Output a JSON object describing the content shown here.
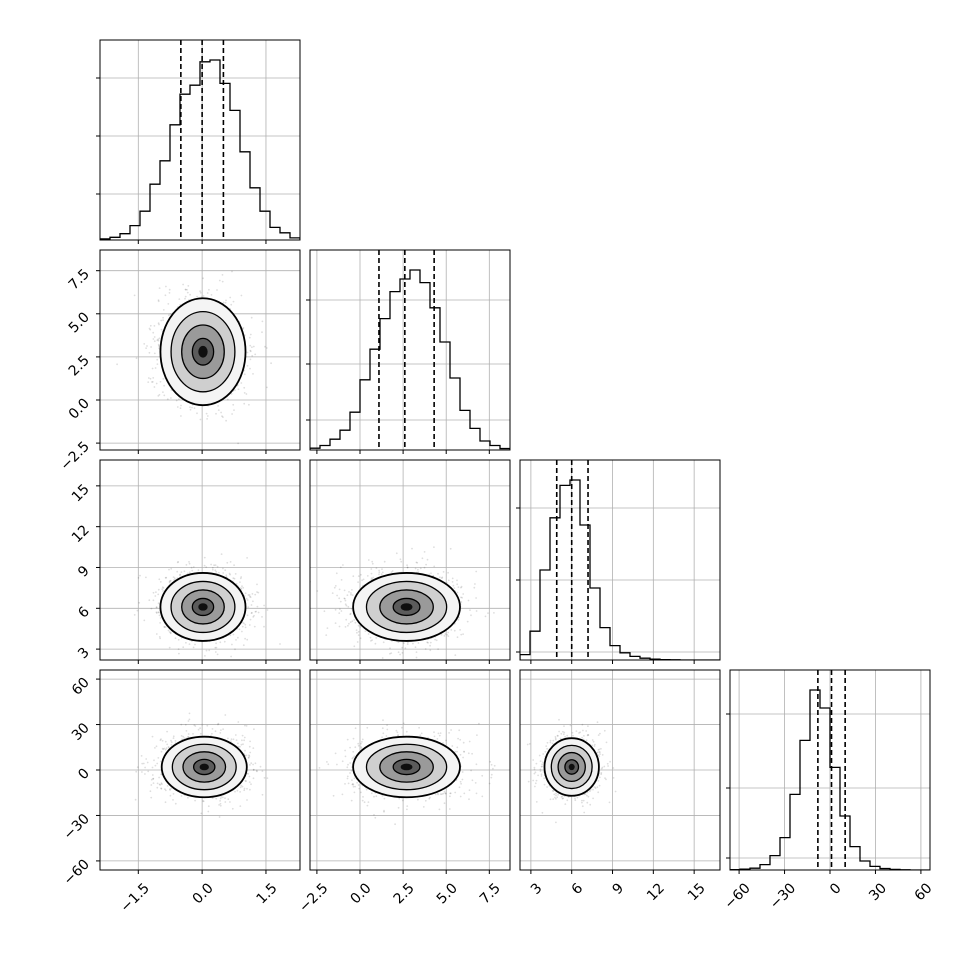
{
  "figure": {
    "type": "corner-plot",
    "grid": true,
    "background": "#ffffff",
    "line_color": "#000000",
    "grid_color": "#b0b0b0"
  },
  "chart_data": {
    "type": "corner",
    "parameters": [
      {
        "range": [
          -2.4,
          2.3
        ],
        "ticks": [
          -1.5,
          0.0,
          1.5
        ],
        "tick_labels": [
          "−1.5",
          "0.0",
          "1.5"
        ],
        "hist_y_ticks": [
          0.23,
          0.52,
          0.81
        ],
        "quantiles": [
          -0.5,
          0.0,
          0.5
        ],
        "hist": [
          0.006,
          0.015,
          0.035,
          0.08,
          0.16,
          0.31,
          0.44,
          0.64,
          0.81,
          0.86,
          0.99,
          1.0,
          0.87,
          0.72,
          0.49,
          0.29,
          0.16,
          0.07,
          0.04,
          0.012
        ]
      },
      {
        "range": [
          -2.9,
          8.7
        ],
        "ticks": [
          -2.5,
          0.0,
          2.5,
          5.0,
          7.5
        ],
        "tick_labels": [
          "−2.5",
          "0.0",
          "2.5",
          "5.0",
          "7.5"
        ],
        "hist_y_ticks": [
          0.15,
          0.43,
          0.75
        ],
        "quantiles": [
          1.1,
          2.6,
          4.3
        ],
        "hist": [
          0.01,
          0.025,
          0.06,
          0.11,
          0.21,
          0.39,
          0.56,
          0.73,
          0.88,
          0.95,
          1.0,
          0.93,
          0.79,
          0.6,
          0.4,
          0.22,
          0.12,
          0.05,
          0.025,
          0.008
        ]
      },
      {
        "range": [
          2.2,
          16.9
        ],
        "ticks": [
          3,
          6,
          9,
          12,
          15
        ],
        "tick_labels": [
          "3",
          "6",
          "9",
          "12",
          "15"
        ],
        "hist_y_ticks": [
          0.04,
          0.4,
          0.76
        ],
        "quantiles": [
          4.9,
          6.0,
          7.2
        ],
        "hist": [
          0.03,
          0.16,
          0.5,
          0.79,
          0.97,
          1.0,
          0.75,
          0.4,
          0.18,
          0.08,
          0.04,
          0.02,
          0.01,
          0.005,
          0.002,
          0.001,
          0,
          0,
          0,
          0
        ]
      },
      {
        "range": [
          -66,
          66
        ],
        "ticks": [
          -60,
          -30,
          0,
          30,
          60
        ],
        "tick_labels": [
          "−60",
          "−30",
          "0",
          "30",
          "60"
        ],
        "hist_y_ticks": [
          0.06,
          0.41,
          0.78
        ],
        "quantiles": [
          -8,
          1,
          10
        ],
        "hist": [
          0.002,
          0.005,
          0.01,
          0.03,
          0.08,
          0.18,
          0.42,
          0.72,
          1.0,
          0.9,
          0.57,
          0.3,
          0.13,
          0.05,
          0.02,
          0.008,
          0.003,
          0.001,
          0,
          0
        ]
      }
    ],
    "covariance_2d": [
      {
        "x_param": 0,
        "y_param": 1,
        "x_mean": 0.02,
        "y_mean": 2.8,
        "x_sd": 0.5,
        "y_sd": 1.55
      },
      {
        "x_param": 0,
        "y_param": 2,
        "x_mean": 0.02,
        "y_mean": 6.1,
        "x_sd": 0.5,
        "y_sd": 1.25
      },
      {
        "x_param": 1,
        "y_param": 2,
        "x_mean": 2.7,
        "y_mean": 6.1,
        "x_sd": 1.55,
        "y_sd": 1.25
      },
      {
        "x_param": 0,
        "y_param": 3,
        "x_mean": 0.05,
        "y_mean": 2,
        "x_sd": 0.5,
        "y_sd": 10
      },
      {
        "x_param": 1,
        "y_param": 3,
        "x_mean": 2.7,
        "y_mean": 2,
        "x_sd": 1.55,
        "y_sd": 10
      },
      {
        "x_param": 2,
        "y_param": 3,
        "x_mean": 6.0,
        "y_mean": 2,
        "x_sd": 1.0,
        "y_sd": 9.5
      }
    ],
    "contour_levels_sigma": [
      0.5,
      1.0,
      1.5,
      2.0
    ]
  }
}
